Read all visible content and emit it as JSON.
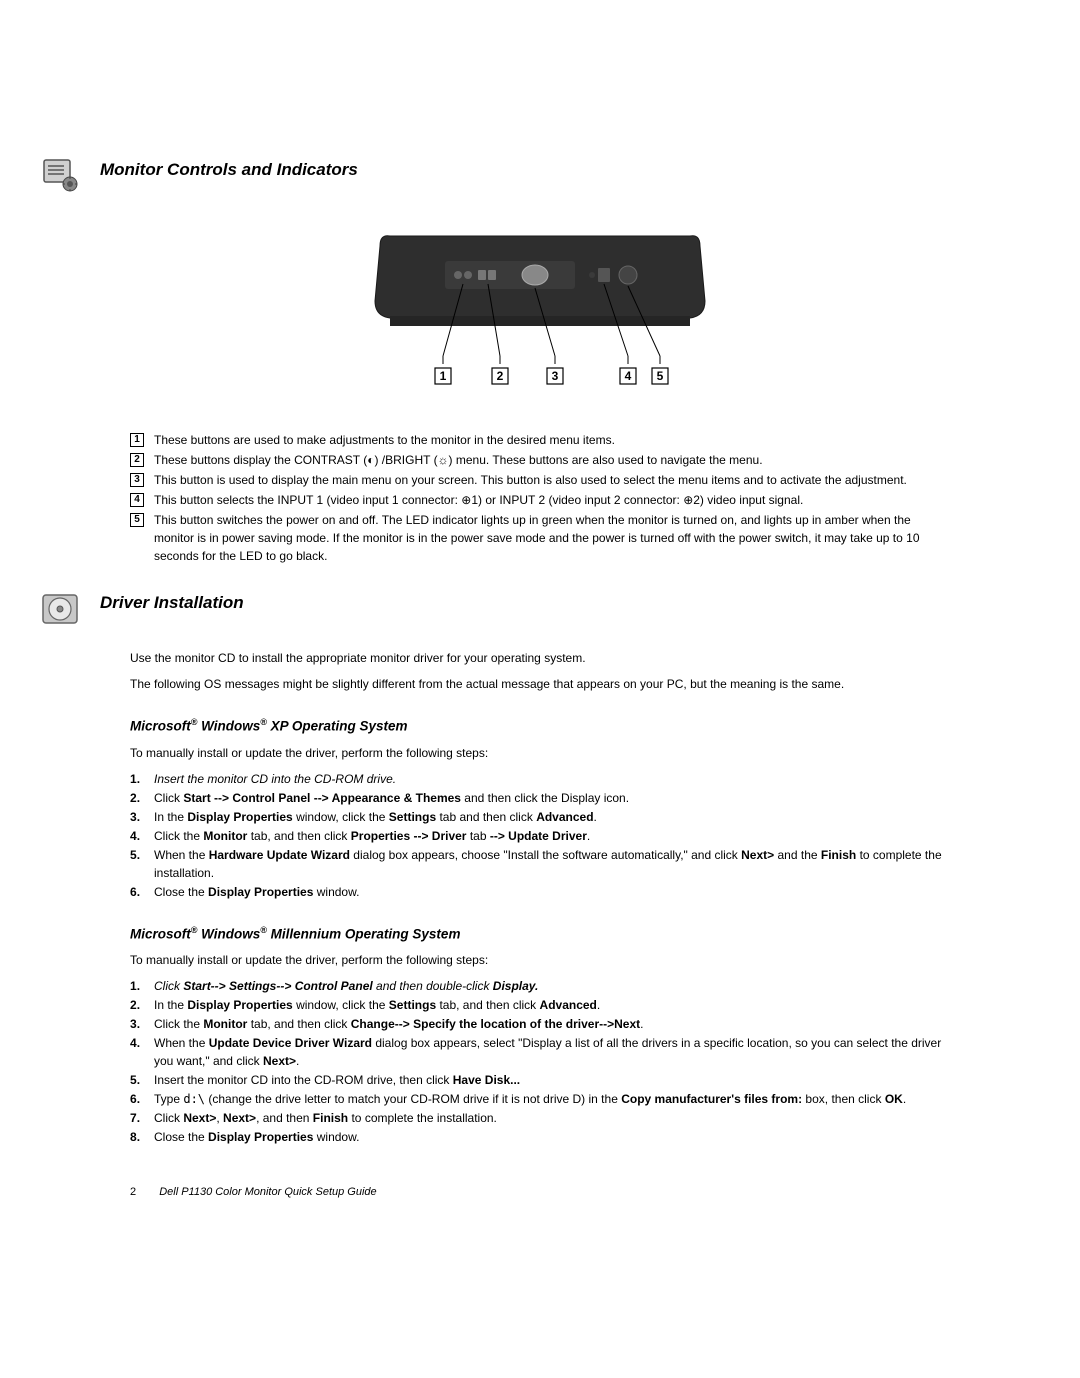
{
  "section1": {
    "title": "Monitor Controls and Indicators",
    "icon_name": "monitor-adjust-icon",
    "diagram": {
      "monitor_body_color": "#2a2a2a",
      "monitor_bezel_color": "#3a3a3a",
      "button_color": "#888888",
      "led_color": "#6a6a6a",
      "power_color": "#555555",
      "callout_line_color": "#000000",
      "labels": [
        "1",
        "2",
        "3",
        "4",
        "5"
      ]
    },
    "defs": [
      {
        "n": "1",
        "text": "These buttons are used to make adjustments to the monitor in the desired menu items."
      },
      {
        "n": "2",
        "text": "These buttons display the CONTRAST (◐) /BRIGHT (☼) menu. These buttons are also used to navigate the menu."
      },
      {
        "n": "3",
        "text": "This button is used to display the main menu on your screen. This button is also used to select the menu items and to activate the adjustment."
      },
      {
        "n": "4",
        "text": "This button selects the INPUT 1 (video input 1 connector: ⊕1) or INPUT 2 (video input 2 connector: ⊕2) video input signal."
      },
      {
        "n": "5",
        "text": "This button switches the power on and off. The LED indicator lights up in green when the monitor is turned on, and lights up in amber when the monitor is in power saving mode. If the monitor is in the power save mode and the power is turned off with the power switch, it may take up to 10 seconds for the LED to go black."
      }
    ]
  },
  "section2": {
    "title": "Driver Installation",
    "icon_name": "cd-icon",
    "intro1": "Use the monitor CD to install the appropriate monitor driver for your operating system.",
    "intro2": "The following OS messages might be slightly different from the actual message that appears on your PC, but the meaning is the same.",
    "os1": {
      "heading_prefix": "Microsoft",
      "heading_mid": "Windows",
      "heading_suffix": "  XP Operating System",
      "intro": "To manually install or update the driver, perform the following steps:",
      "steps": [
        {
          "html": "<i>Insert the monitor CD into the CD-ROM drive.</i>"
        },
        {
          "html": "Click <b>Start --> Control Panel --> Appearance & Themes</b> and then click the Display icon."
        },
        {
          "html": "In the <b>Display Properties</b> window, click the <b>Settings</b> tab and then click <b>Advanced</b>."
        },
        {
          "html": "Click the <b>Monitor</b> tab, and then click <b>Properties --> Driver</b> tab <b>--> Update Driver</b>."
        },
        {
          "html": "When the <b>Hardware Update Wizard</b> dialog box appears, choose \"Install the software automatically,\" and click <b>Next></b> and the <b>Finish</b> to complete the installation."
        },
        {
          "html": "Close the <b>Display Properties</b> window."
        }
      ]
    },
    "os2": {
      "heading_prefix": "Microsoft",
      "heading_mid": " Windows",
      "heading_suffix": " Millennium Operating System",
      "intro": "To manually install or update the driver, perform the following steps:",
      "steps": [
        {
          "html": "<i>Click <b>Start--> Settings--> Control Panel</b> and then double-click <b>Display.</b></i>"
        },
        {
          "html": "In the <b>Display Properties</b> window, click the <b>Settings</b> tab, and then click <b>Advanced</b>."
        },
        {
          "html": "Click the <b>Monitor</b> tab, and then click <b>Change--> Specify the location of the driver-->Next</b>."
        },
        {
          "html": "When the <b>Update Device Driver Wizard</b> dialog box appears, select \"Display a list of all the drivers in a specific location, so you can select the driver you want,\" and click <b>Next></b>."
        },
        {
          "html": "Insert the monitor CD into the CD-ROM drive, then click <b>Have Disk...</b>"
        },
        {
          "html": "Type <span style='font-family:monospace'>d:\\</span> (change the drive letter to match your CD-ROM drive if it is not drive D) in the <b>Copy manufacturer's files from:</b> box, then click <b>OK</b>."
        },
        {
          "html": "Click <b>Next></b>, <b>Next></b>, and then <b>Finish</b> to complete the installation."
        },
        {
          "html": "Close the <b>Display Properties</b> window."
        }
      ]
    }
  },
  "footer": {
    "page": "2",
    "title": "Dell P1130 Color Monitor Quick Setup Guide"
  },
  "colors": {
    "text": "#000000",
    "bg": "#ffffff"
  }
}
